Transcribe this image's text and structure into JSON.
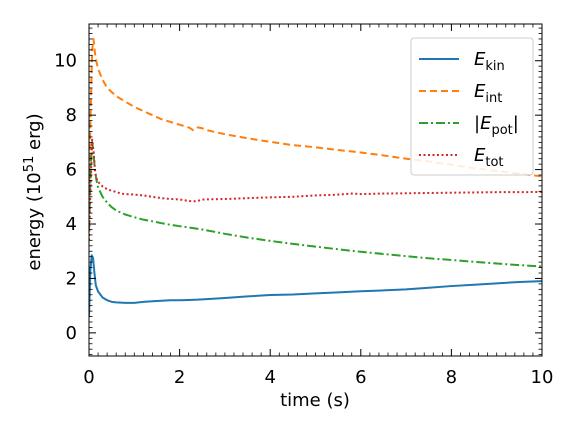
{
  "chart_data": {
    "type": "line",
    "xlabel": "time (s)",
    "ylabel_main": "energy (10",
    "ylabel_sup": "51",
    "ylabel_tail": " erg)",
    "xlim": [
      0,
      10
    ],
    "ylim": [
      -0.85,
      11.35
    ],
    "x_ticks": [
      0,
      2,
      4,
      6,
      8,
      10
    ],
    "y_ticks": [
      0,
      2,
      4,
      6,
      8,
      10
    ],
    "x_minor_step": 0.2,
    "y_minor_step": 0.2,
    "grid": false,
    "legend_position": "top-right",
    "series": [
      {
        "key": "ekin",
        "legend_prefix": "E",
        "legend_sub": "kin",
        "legend_abs": false,
        "color": "#1f77b4",
        "dash": "",
        "x": [
          0,
          0.03,
          0.06,
          0.09,
          0.12,
          0.15,
          0.2,
          0.3,
          0.4,
          0.5,
          0.6,
          0.7,
          0.8,
          1.0,
          1.2,
          1.4,
          1.6,
          1.8,
          2.0,
          2.2,
          2.4,
          2.6,
          3.0,
          3.5,
          4.0,
          4.5,
          5.0,
          5.5,
          6.0,
          6.5,
          7.0,
          7.5,
          8.0,
          8.5,
          9.0,
          9.5,
          10.0
        ],
        "y": [
          0.6,
          2.3,
          2.85,
          2.75,
          2.2,
          1.75,
          1.52,
          1.3,
          1.2,
          1.14,
          1.12,
          1.11,
          1.1,
          1.1,
          1.14,
          1.16,
          1.18,
          1.2,
          1.2,
          1.21,
          1.22,
          1.24,
          1.28,
          1.34,
          1.39,
          1.41,
          1.45,
          1.49,
          1.53,
          1.56,
          1.6,
          1.66,
          1.72,
          1.77,
          1.82,
          1.87,
          1.9
        ]
      },
      {
        "key": "eint",
        "legend_prefix": "E",
        "legend_sub": "int",
        "legend_abs": false,
        "color": "#ff7f0e",
        "dash": "7,4",
        "x": [
          0,
          0.04,
          0.07,
          0.1,
          0.13,
          0.16,
          0.2,
          0.3,
          0.4,
          0.5,
          0.6,
          0.7,
          0.8,
          1.0,
          1.2,
          1.4,
          1.6,
          1.8,
          2.0,
          2.2,
          2.3,
          2.4,
          2.5,
          2.6,
          3.0,
          3.5,
          4.0,
          4.5,
          5.0,
          5.5,
          6.0,
          6.5,
          7.0,
          7.5,
          8.0,
          8.5,
          9.0,
          9.5,
          10.0
        ],
        "y": [
          5.5,
          8.3,
          10.4,
          10.8,
          10.3,
          10.0,
          9.7,
          9.3,
          9.0,
          8.85,
          8.7,
          8.6,
          8.5,
          8.3,
          8.15,
          8.0,
          7.85,
          7.75,
          7.65,
          7.55,
          7.45,
          7.55,
          7.52,
          7.45,
          7.3,
          7.15,
          7.02,
          6.9,
          6.82,
          6.72,
          6.63,
          6.52,
          6.4,
          6.3,
          6.18,
          6.05,
          5.95,
          5.85,
          5.75
        ]
      },
      {
        "key": "epot",
        "legend_prefix": "E",
        "legend_sub": "pot",
        "legend_abs": true,
        "color": "#2ca02c",
        "dash": "9,3,2,3",
        "x": [
          0,
          0.04,
          0.07,
          0.1,
          0.13,
          0.16,
          0.2,
          0.3,
          0.4,
          0.5,
          0.6,
          0.7,
          0.8,
          1.0,
          1.2,
          1.4,
          1.6,
          1.8,
          2.0,
          2.5,
          3.0,
          3.5,
          4.0,
          4.5,
          5.0,
          5.5,
          6.0,
          6.5,
          7.0,
          7.5,
          8.0,
          8.5,
          9.0,
          9.5,
          10.0
        ],
        "y": [
          3.8,
          6.2,
          7.0,
          6.6,
          6.0,
          5.65,
          5.35,
          5.0,
          4.78,
          4.62,
          4.5,
          4.42,
          4.35,
          4.25,
          4.16,
          4.1,
          4.03,
          3.97,
          3.92,
          3.8,
          3.64,
          3.5,
          3.38,
          3.27,
          3.17,
          3.07,
          2.98,
          2.9,
          2.82,
          2.74,
          2.68,
          2.61,
          2.55,
          2.49,
          2.44
        ]
      },
      {
        "key": "etot",
        "legend_prefix": "E",
        "legend_sub": "tot",
        "legend_abs": false,
        "color": "#d62728",
        "dash": "2,2.5",
        "x": [
          0,
          0.04,
          0.07,
          0.1,
          0.13,
          0.16,
          0.2,
          0.3,
          0.4,
          0.5,
          0.6,
          0.7,
          0.8,
          1.0,
          1.2,
          1.4,
          1.6,
          1.8,
          2.0,
          2.2,
          2.3,
          2.4,
          2.5,
          3.0,
          3.5,
          4.0,
          4.5,
          5.0,
          5.5,
          5.8,
          6.0,
          6.5,
          7.0,
          7.5,
          8.0,
          8.5,
          9.0,
          9.5,
          10.0
        ],
        "y": [
          3.4,
          5.6,
          7.1,
          6.7,
          6.0,
          5.7,
          5.55,
          5.38,
          5.28,
          5.22,
          5.18,
          5.12,
          5.1,
          5.08,
          5.05,
          5.0,
          4.95,
          4.92,
          4.9,
          4.85,
          4.83,
          4.85,
          4.9,
          4.92,
          4.95,
          4.98,
          5.0,
          5.05,
          5.08,
          5.12,
          5.1,
          5.12,
          5.13,
          5.14,
          5.15,
          5.16,
          5.17,
          5.17,
          5.18
        ]
      }
    ]
  }
}
